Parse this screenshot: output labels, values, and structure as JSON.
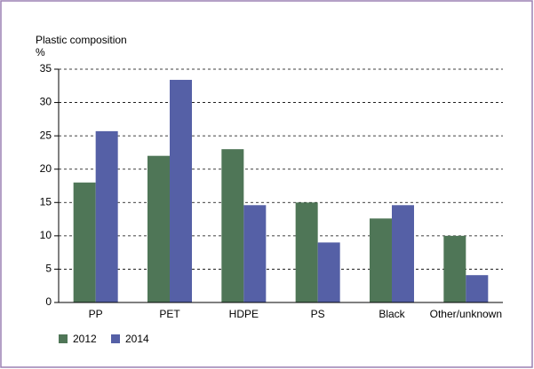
{
  "chart_data": {
    "type": "bar",
    "title": "Plastic composition",
    "y_label": "%",
    "categories": [
      "PP",
      "PET",
      "HDPE",
      "PS",
      "Black",
      "Other/unknown"
    ],
    "series": [
      {
        "name": "2012",
        "color": "#4f7657",
        "values": [
          18,
          22,
          23,
          15,
          12.6,
          10
        ]
      },
      {
        "name": "2014",
        "color": "#5560a6",
        "values": [
          25.7,
          33.4,
          14.6,
          9,
          14.6,
          4.1
        ]
      }
    ],
    "ylim": [
      0,
      35
    ],
    "yticks": [
      0,
      5,
      10,
      15,
      20,
      25,
      30,
      35
    ],
    "grid": true
  }
}
